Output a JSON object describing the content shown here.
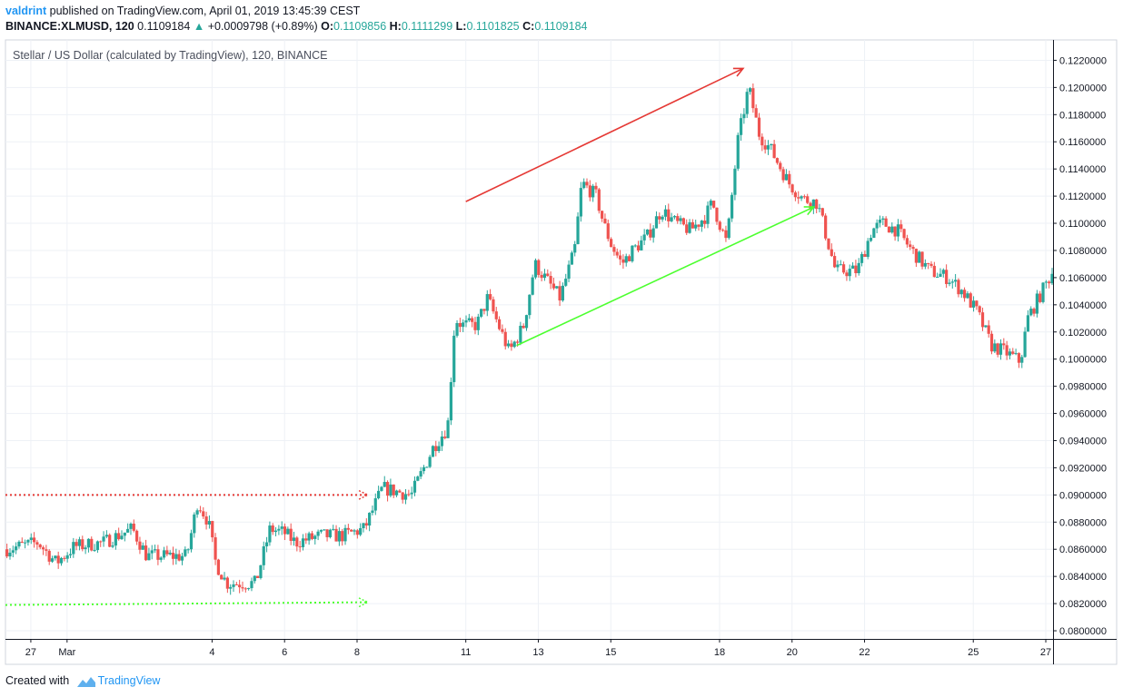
{
  "header": {
    "author": "valdrint",
    "published_text": "published on TradingView.com, April 01, 2019 13:45:39 CEST",
    "symbol": "BINANCE:XLMUSD, 120",
    "last_price": "0.1109184",
    "change_arrow": "▲",
    "change": "+0.0009798 (+0.89%)",
    "ohlc": [
      {
        "k": "O:",
        "v": "0.1109856"
      },
      {
        "k": "H:",
        "v": "0.1111299"
      },
      {
        "k": "L:",
        "v": "0.1101825"
      },
      {
        "k": "C:",
        "v": "0.1109184"
      }
    ]
  },
  "footer": {
    "created_with": "Created with",
    "brand": "TradingView"
  },
  "colors": {
    "up": "#26a69a",
    "down": "#ef5350",
    "resistance": "#e53935",
    "support": "#4cff2f",
    "grid": "#eef1f6"
  },
  "chart_data": {
    "type": "candlestick",
    "title": "Stellar / US Dollar (calculated by TradingView), 120, BINANCE",
    "ylim": [
      0.0794,
      0.1235
    ],
    "y_ticks": [
      "0.1220000",
      "0.1200000",
      "0.1180000",
      "0.1160000",
      "0.1140000",
      "0.1120000",
      "0.1100000",
      "0.1080000",
      "0.1060000",
      "0.1040000",
      "0.1020000",
      "0.1000000",
      "0.0980000",
      "0.0960000",
      "0.0940000",
      "0.0920000",
      "0.0900000",
      "0.0880000",
      "0.0860000",
      "0.0840000",
      "0.0820000",
      "0.0800000"
    ],
    "x_ticks": [
      {
        "label": "27",
        "day": 0
      },
      {
        "label": "Mar",
        "day": 1
      },
      {
        "label": "4",
        "day": 5
      },
      {
        "label": "6",
        "day": 7
      },
      {
        "label": "8",
        "day": 9
      },
      {
        "label": "11",
        "day": 12
      },
      {
        "label": "13",
        "day": 14
      },
      {
        "label": "15",
        "day": 16
      },
      {
        "label": "18",
        "day": 19
      },
      {
        "label": "20",
        "day": 21
      },
      {
        "label": "22",
        "day": 23
      },
      {
        "label": "25",
        "day": 26
      },
      {
        "label": "27",
        "day": 28
      }
    ],
    "xlim_days": [
      -0.7,
      28.2
    ],
    "anchors": [
      [
        -0.7,
        0.086
      ],
      [
        0.2,
        0.0865
      ],
      [
        0.7,
        0.085
      ],
      [
        1.2,
        0.0862
      ],
      [
        2.0,
        0.0865
      ],
      [
        2.8,
        0.0875
      ],
      [
        3.2,
        0.0855
      ],
      [
        4.3,
        0.0855
      ],
      [
        4.6,
        0.0895
      ],
      [
        4.9,
        0.088
      ],
      [
        5.1,
        0.085
      ],
      [
        5.4,
        0.0835
      ],
      [
        6.2,
        0.0835
      ],
      [
        6.6,
        0.0875
      ],
      [
        7.0,
        0.0872
      ],
      [
        7.3,
        0.0865
      ],
      [
        8.0,
        0.087
      ],
      [
        8.6,
        0.087
      ],
      [
        9.2,
        0.0875
      ],
      [
        9.7,
        0.0905
      ],
      [
        10.5,
        0.09
      ],
      [
        11.1,
        0.0935
      ],
      [
        11.5,
        0.095
      ],
      [
        11.7,
        0.103
      ],
      [
        11.9,
        0.1025
      ],
      [
        12.3,
        0.1025
      ],
      [
        12.6,
        0.1045
      ],
      [
        12.9,
        0.1025
      ],
      [
        13.2,
        0.1005
      ],
      [
        13.6,
        0.1025
      ],
      [
        13.9,
        0.107
      ],
      [
        14.6,
        0.1045
      ],
      [
        15.0,
        0.108
      ],
      [
        15.2,
        0.113
      ],
      [
        15.6,
        0.112
      ],
      [
        15.8,
        0.11
      ],
      [
        16.0,
        0.1085
      ],
      [
        16.3,
        0.107
      ],
      [
        16.6,
        0.108
      ],
      [
        17.0,
        0.109
      ],
      [
        17.4,
        0.111
      ],
      [
        17.8,
        0.11
      ],
      [
        18.2,
        0.1095
      ],
      [
        18.6,
        0.1105
      ],
      [
        18.8,
        0.1115
      ],
      [
        19.2,
        0.1085
      ],
      [
        19.5,
        0.116
      ],
      [
        19.8,
        0.12
      ],
      [
        20.1,
        0.1165
      ],
      [
        20.4,
        0.1155
      ],
      [
        20.6,
        0.1145
      ],
      [
        20.9,
        0.113
      ],
      [
        21.3,
        0.1118
      ],
      [
        21.7,
        0.1115
      ],
      [
        22.0,
        0.1085
      ],
      [
        22.2,
        0.1065
      ],
      [
        22.8,
        0.1065
      ],
      [
        23.2,
        0.1095
      ],
      [
        23.5,
        0.11
      ],
      [
        23.9,
        0.1095
      ],
      [
        24.3,
        0.108
      ],
      [
        24.8,
        0.1065
      ],
      [
        25.3,
        0.106
      ],
      [
        25.7,
        0.105
      ],
      [
        26.1,
        0.1035
      ],
      [
        26.5,
        0.101
      ],
      [
        26.9,
        0.1005
      ],
      [
        27.3,
        0.0998
      ],
      [
        27.5,
        0.103
      ],
      [
        28.0,
        0.1055
      ],
      [
        28.2,
        0.1065
      ]
    ],
    "annotations": [
      {
        "type": "arrow",
        "name": "resistance-trendline",
        "color": "resistance",
        "from": [
          12.0,
          0.1116
        ],
        "to": [
          19.65,
          0.1214
        ],
        "style": "solid"
      },
      {
        "type": "arrow",
        "name": "support-trendline",
        "color": "support",
        "from": [
          13.4,
          0.101
        ],
        "to": [
          21.6,
          0.1112
        ],
        "style": "solid"
      },
      {
        "type": "arrow",
        "name": "red-dotted-level",
        "color": "resistance",
        "from": [
          -0.7,
          0.09
        ],
        "to": [
          9.3,
          0.09
        ],
        "style": "dotted"
      },
      {
        "type": "arrow",
        "name": "green-dotted-level",
        "color": "support",
        "from": [
          -0.7,
          0.0819
        ],
        "to": [
          9.3,
          0.0821
        ],
        "style": "dotted"
      }
    ],
    "grid": true
  }
}
